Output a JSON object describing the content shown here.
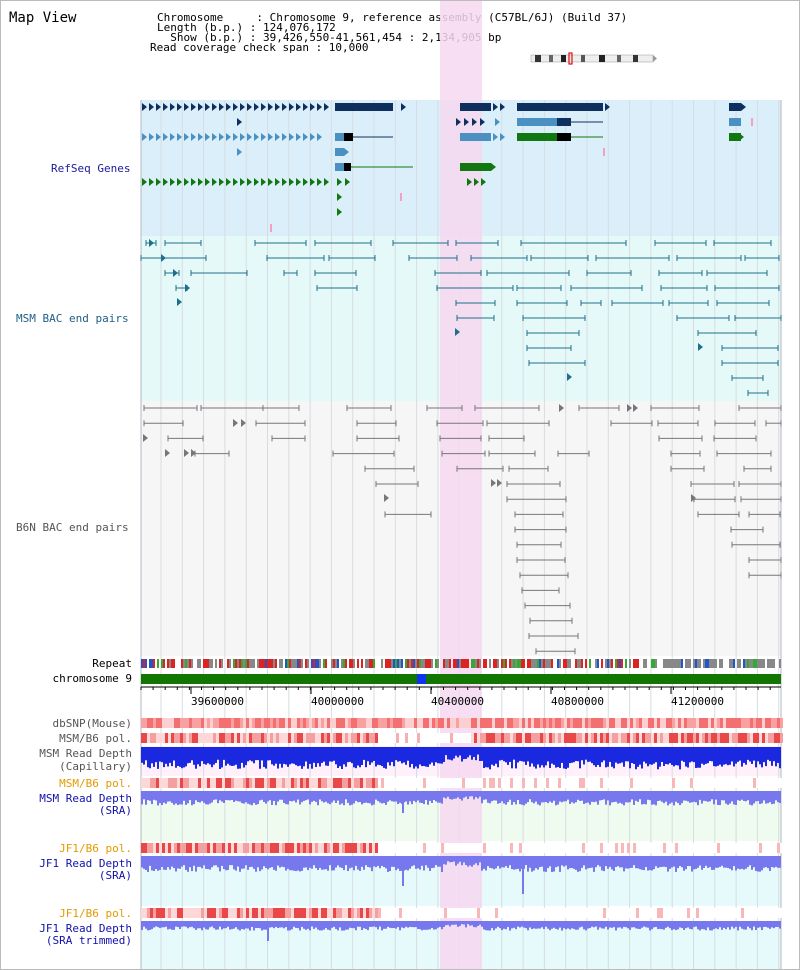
{
  "view_title": "Map View",
  "info": {
    "chromosome": "Chromosome     : Chromosome 9, reference assembly (C57BL/6J) (Build 37)",
    "length": "Length (b.p.) : 124,076,172",
    "show": "  Show (b.p.) : 39,426,550-41,561,454 : 2,134,905 bp",
    "coverage": "Read coverage check span : 10,000"
  },
  "tracks": {
    "refseq": "RefSeq Genes",
    "msm_bac": "MSM BAC end pairs",
    "b6n_bac": "B6N BAC end pairs",
    "repeat": "Repeat",
    "chromosome": "chromosome 9",
    "dbsnp": "dbSNP(Mouse)",
    "msm_pol_1": "MSM/B6 pol.",
    "msm_depth_cap_1": "MSM Read Depth",
    "msm_depth_cap_2": "(Capillary)",
    "msm_pol_2": "MSM/B6 pol.",
    "msm_depth_sra_1": "MSM Read Depth",
    "msm_depth_sra_2": "(SRA)",
    "jf1_pol_1": "JF1/B6 pol.",
    "jf1_depth_sra_1": "JF1 Read Depth",
    "jf1_depth_sra_2": "(SRA)",
    "jf1_pol_2": "JF1/B6 pol.",
    "jf1_depth_trim_1": "JF1 Read Depth",
    "jf1_depth_trim_2": "(SRA trimmed)"
  },
  "axis": {
    "ticks": [
      "39600000",
      "40000000",
      "40400000",
      "40800000",
      "41200000"
    ]
  },
  "colors": {
    "highlight": "#f6d8f0",
    "refseq_bg": "#dbeffa",
    "msm_bg": "#e6f9f9",
    "b6n_bg": "#f6f6f6",
    "gene_navy": "#0f2f5f",
    "gene_light": "#4a90c0",
    "gene_green": "#117711",
    "msm_pair": "#1e6f8c",
    "b6n_pair": "#777777",
    "chromosome_bar": "#117700",
    "depth_blue": "#1a28e0",
    "depth_lilac": "#7777ee"
  }
}
